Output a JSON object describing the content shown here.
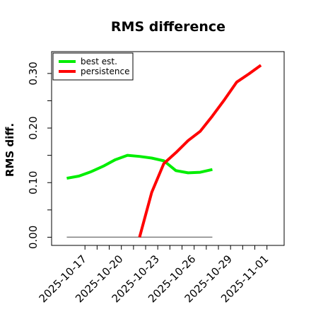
{
  "chart_data": {
    "type": "line",
    "title": "RMS difference",
    "ylabel": "RMS diff.",
    "xlabel": "",
    "ylim": [
      -0.015,
      0.34
    ],
    "xlim": [
      "2025-10-14T06:00",
      "2025-11-02T10:00"
    ],
    "y_ticks": [
      {
        "value": 0.0,
        "label": "0.00"
      },
      {
        "value": 0.05,
        "label": ""
      },
      {
        "value": 0.1,
        "label": "0.10"
      },
      {
        "value": 0.15,
        "label": ""
      },
      {
        "value": 0.2,
        "label": "0.20"
      },
      {
        "value": 0.25,
        "label": ""
      },
      {
        "value": 0.3,
        "label": "0.30"
      }
    ],
    "x_ticks": [
      {
        "value": "2025-10-17",
        "label": "2025-10-17"
      },
      {
        "value": "2025-10-18",
        "label": ""
      },
      {
        "value": "2025-10-19",
        "label": ""
      },
      {
        "value": "2025-10-20",
        "label": "2025-10-20"
      },
      {
        "value": "2025-10-21",
        "label": ""
      },
      {
        "value": "2025-10-22",
        "label": ""
      },
      {
        "value": "2025-10-23",
        "label": "2025-10-23"
      },
      {
        "value": "2025-10-24",
        "label": ""
      },
      {
        "value": "2025-10-25",
        "label": ""
      },
      {
        "value": "2025-10-26",
        "label": "2025-10-26"
      },
      {
        "value": "2025-10-27",
        "label": ""
      },
      {
        "value": "2025-10-28",
        "label": ""
      },
      {
        "value": "2025-10-29",
        "label": "2025-10-29"
      },
      {
        "value": "2025-10-30",
        "label": ""
      },
      {
        "value": "2025-10-31",
        "label": ""
      },
      {
        "value": "2025-11-01",
        "label": "2025-11-01"
      }
    ],
    "legend_position": "top-left",
    "series": [
      {
        "name": "best est.",
        "color": "#00ee00",
        "points": [
          {
            "x": "2025-10-15T12:00",
            "y": 0.108
          },
          {
            "x": "2025-10-16T12:00",
            "y": 0.112
          },
          {
            "x": "2025-10-17T12:00",
            "y": 0.12
          },
          {
            "x": "2025-10-18T12:00",
            "y": 0.13
          },
          {
            "x": "2025-10-19T12:00",
            "y": 0.142
          },
          {
            "x": "2025-10-20T12:00",
            "y": 0.15
          },
          {
            "x": "2025-10-21T12:00",
            "y": 0.148
          },
          {
            "x": "2025-10-22T12:00",
            "y": 0.145
          },
          {
            "x": "2025-10-23T12:00",
            "y": 0.14
          },
          {
            "x": "2025-10-24T12:00",
            "y": 0.122
          },
          {
            "x": "2025-10-25T12:00",
            "y": 0.118
          },
          {
            "x": "2025-10-26T12:00",
            "y": 0.119
          },
          {
            "x": "2025-10-27T12:00",
            "y": 0.124
          }
        ]
      },
      {
        "name": "persistence",
        "color": "#ff0000",
        "points": [
          {
            "x": "2025-10-21T12:00",
            "y": 0.0
          },
          {
            "x": "2025-10-22T12:00",
            "y": 0.082
          },
          {
            "x": "2025-10-23T12:00",
            "y": 0.135
          },
          {
            "x": "2025-10-24T12:00",
            "y": 0.155
          },
          {
            "x": "2025-10-25T12:00",
            "y": 0.177
          },
          {
            "x": "2025-10-26T12:00",
            "y": 0.194
          },
          {
            "x": "2025-10-27T12:00",
            "y": 0.222
          },
          {
            "x": "2025-10-28T12:00",
            "y": 0.252
          },
          {
            "x": "2025-10-29T12:00",
            "y": 0.284
          },
          {
            "x": "2025-10-30T12:00",
            "y": 0.299
          },
          {
            "x": "2025-10-31T12:00",
            "y": 0.315
          }
        ]
      },
      {
        "name": "",
        "color": "#7f7f7f",
        "points": [
          {
            "x": "2025-10-15T12:00",
            "y": 0.0
          },
          {
            "x": "2025-10-27T12:00",
            "y": 0.0
          }
        ]
      }
    ]
  }
}
